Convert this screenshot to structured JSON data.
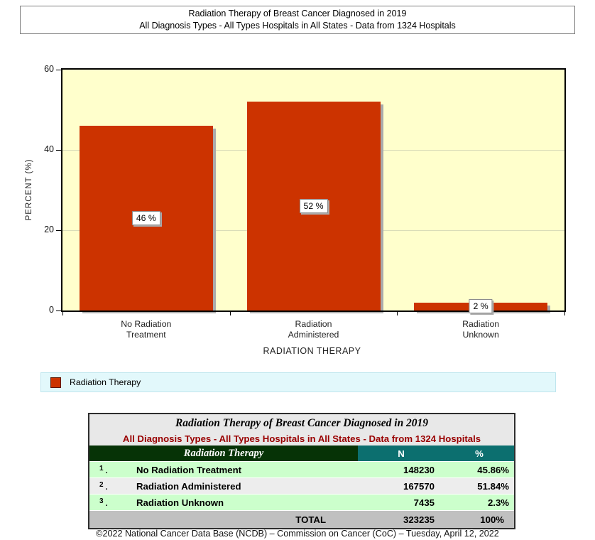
{
  "report_header": {
    "line1": "Radiation Therapy of Breast Cancer Diagnosed in 2019",
    "line2": "All Diagnosis Types - All Types Hospitals in All States - Data from 1324 Hospitals"
  },
  "chart_data": {
    "type": "bar",
    "categories": [
      "No Radiation Treatment",
      "Radiation Administered",
      "Radiation Unknown"
    ],
    "category_lines": [
      [
        "No Radiation",
        "Treatment"
      ],
      [
        "Radiation",
        "Administered"
      ],
      [
        "Radiation",
        "Unknown"
      ]
    ],
    "values": [
      46,
      52,
      2
    ],
    "bar_labels": [
      "46 %",
      "52 %",
      "2 %"
    ],
    "series_name": "Radiation Therapy",
    "xlabel": "RADIATION THERAPY",
    "ylabel": "PERCENT (%)",
    "ylim": [
      0,
      60
    ],
    "yticks": [
      0,
      20,
      40,
      60
    ],
    "grid": "horizontal",
    "legend_position": "bottom",
    "bar_color": "#CC3300",
    "plot_bg": "#FFFFCC"
  },
  "legend": {
    "label": "Radiation Therapy",
    "swatch_color": "#CC3300"
  },
  "table": {
    "title": "Radiation Therapy of Breast Cancer Diagnosed in 2019",
    "subtitle": "All Diagnosis Types - All Types Hospitals in All States - Data from 1324 Hospitals",
    "columns": {
      "group": "Radiation Therapy",
      "n": "N",
      "pct": "%"
    },
    "rows": [
      {
        "num": "1",
        "label": "No Radiation Treatment",
        "n": "148230",
        "pct": "45.86%"
      },
      {
        "num": "2",
        "label": "Radiation Administered",
        "n": "167570",
        "pct": "51.84%"
      },
      {
        "num": "3",
        "label": "Radiation Unknown",
        "n": "7435",
        "pct": "2.3%"
      }
    ],
    "total": {
      "label": "TOTAL",
      "n": "323235",
      "pct": "100%"
    }
  },
  "footer": {
    "text": "©2022 National Cancer Data Base (NCDB) – Commission on Cancer (CoC) – Tuesday, April 12, 2022"
  },
  "colors": {
    "bar": "#CC3300",
    "plot_bg": "#FFFFCC",
    "legend_bg": "#E2F8FB",
    "table_header_green": "#063306",
    "table_header_teal": "#0C6F6F",
    "row_green": "#CCFFCC",
    "row_gray": "#EDEDED",
    "total_gray": "#C0C0C0",
    "pct_blue": "#0000EE",
    "subtitle_red": "#990000"
  }
}
